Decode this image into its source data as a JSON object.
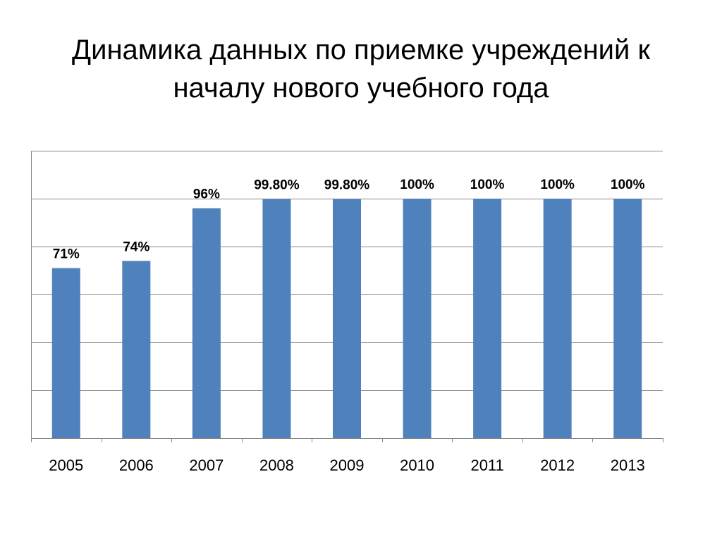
{
  "slide": {
    "title": "Динамика данных по приемке учреждений к началу нового учебного года"
  },
  "chart_data": {
    "type": "bar",
    "title": "",
    "xlabel": "",
    "ylabel": "",
    "ylim": [
      0,
      1.2
    ],
    "grid": true,
    "legend": "none",
    "categories": [
      "2005",
      "2006",
      "2007",
      "2008",
      "2009",
      "2010",
      "2011",
      "2012",
      "2013"
    ],
    "series": [
      {
        "values": [
          0.71,
          0.74,
          0.96,
          0.998,
          0.998,
          1.0,
          1.0,
          1.0,
          1.0
        ],
        "data_labels": [
          "71%",
          "74%",
          "96%",
          "99.80%",
          "99.80%",
          "100%",
          "100%",
          "100%",
          "100%"
        ],
        "color": "#4F81BD"
      }
    ],
    "gridline_color": "#868686",
    "axis_color": "#868686"
  }
}
